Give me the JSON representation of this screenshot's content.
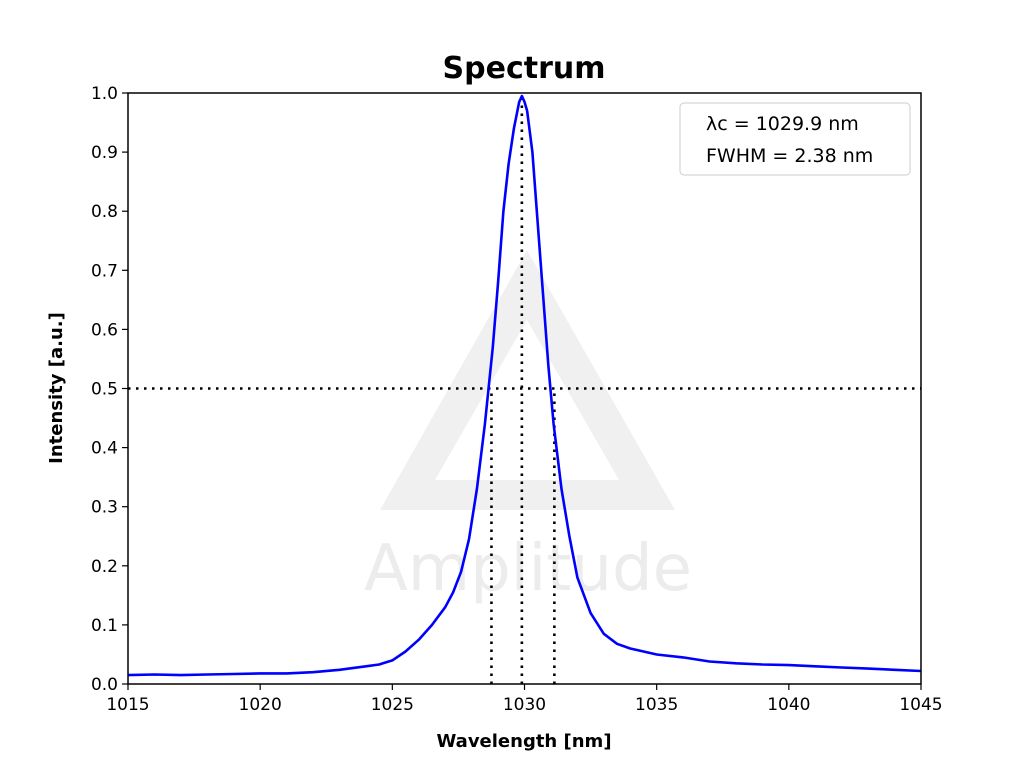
{
  "chart_data": {
    "type": "line",
    "title": "Spectrum",
    "xlabel": "Wavelength [nm]",
    "ylabel": "Intensity [a.u.]",
    "xlim": [
      1015,
      1045
    ],
    "ylim": [
      0.0,
      1.0
    ],
    "xticks": [
      "1015",
      "1020",
      "1025",
      "1030",
      "1035",
      "1040",
      "1045"
    ],
    "yticks": [
      "0.0",
      "0.1",
      "0.2",
      "0.3",
      "0.4",
      "0.5",
      "0.6",
      "0.7",
      "0.8",
      "0.9",
      "1.0"
    ],
    "grid": false,
    "legend_position": "top-right",
    "annotation": {
      "center_label": "λc = 1029.9 nm",
      "fwhm_label": "FWHM = 2.38 nm"
    },
    "series": [
      {
        "color": "#0000ff",
        "x": [
          1015,
          1016,
          1017,
          1018,
          1019,
          1020,
          1021,
          1022,
          1023,
          1024,
          1024.5,
          1025,
          1025.5,
          1026,
          1026.5,
          1027,
          1027.3,
          1027.6,
          1027.9,
          1028.2,
          1028.5,
          1028.8,
          1029.0,
          1029.2,
          1029.4,
          1029.6,
          1029.8,
          1029.9,
          1030.0,
          1030.1,
          1030.3,
          1030.5,
          1030.7,
          1030.9,
          1031.1,
          1031.4,
          1031.7,
          1032.0,
          1032.5,
          1033,
          1033.5,
          1034,
          1035,
          1036,
          1037,
          1038,
          1039,
          1040,
          1041,
          1042,
          1043,
          1044,
          1045
        ],
        "y": [
          0.015,
          0.016,
          0.015,
          0.016,
          0.017,
          0.018,
          0.018,
          0.02,
          0.024,
          0.03,
          0.033,
          0.04,
          0.055,
          0.075,
          0.1,
          0.13,
          0.155,
          0.19,
          0.245,
          0.33,
          0.44,
          0.57,
          0.68,
          0.8,
          0.88,
          0.94,
          0.985,
          0.995,
          0.985,
          0.97,
          0.9,
          0.78,
          0.66,
          0.54,
          0.44,
          0.33,
          0.25,
          0.18,
          0.12,
          0.085,
          0.068,
          0.06,
          0.05,
          0.045,
          0.038,
          0.035,
          0.033,
          0.032,
          0.03,
          0.028,
          0.026,
          0.024,
          0.022
        ]
      }
    ],
    "reference_lines": {
      "half_max": 0.5,
      "center": 1029.9,
      "fwhm_left": 1028.75,
      "fwhm_right": 1031.13
    },
    "watermark": "Amplitude"
  }
}
